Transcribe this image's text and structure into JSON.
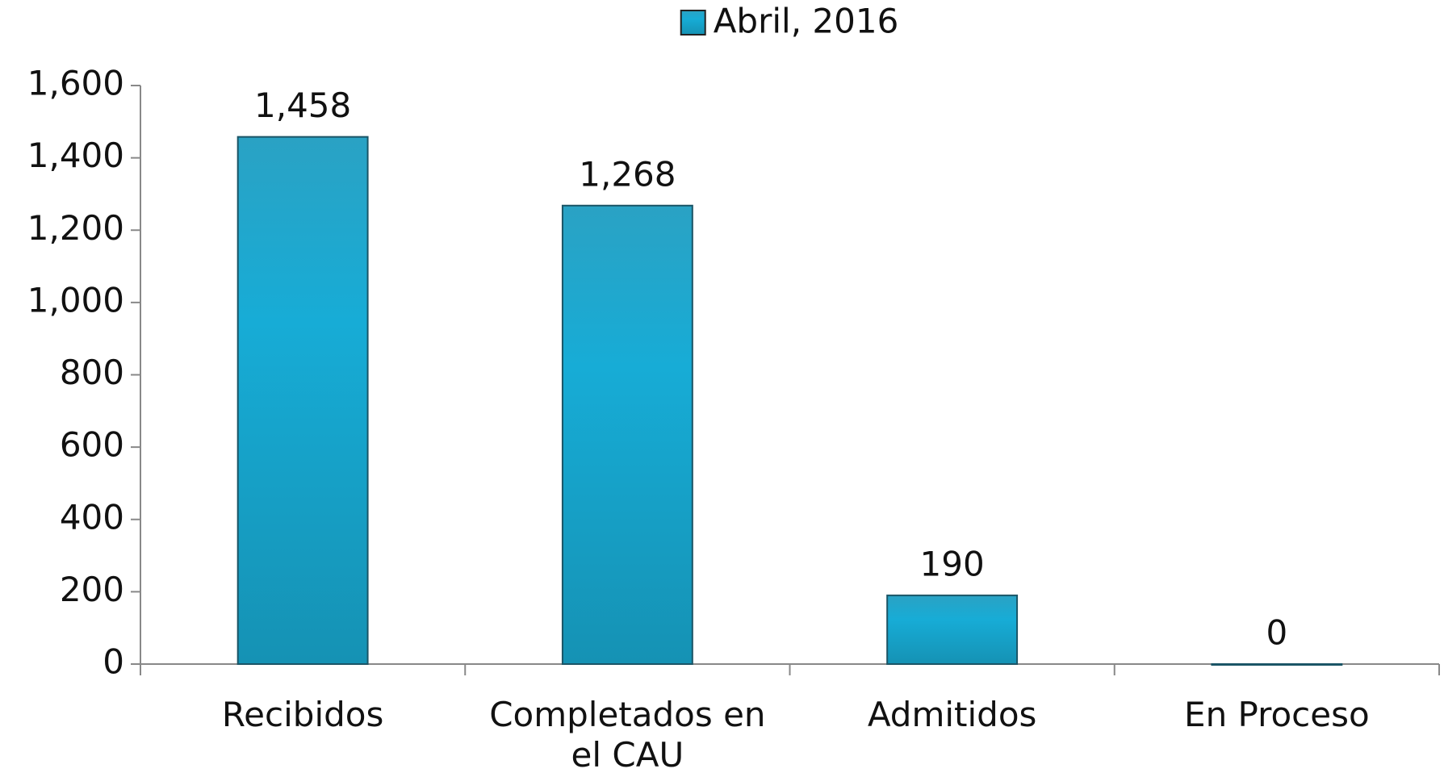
{
  "chart_data": {
    "type": "bar",
    "categories": [
      "Recibidos",
      "Completados en el CAU",
      "Admitidos",
      "En Proceso"
    ],
    "series": [
      {
        "name": "Abril, 2016",
        "color": "#1aa6cc",
        "values": [
          1458,
          1268,
          190,
          0
        ],
        "value_labels": [
          "1,458",
          "1,268",
          "190",
          "0"
        ]
      }
    ],
    "ylim": [
      0,
      1600
    ],
    "yticks": [
      0,
      200,
      400,
      600,
      800,
      {
        "value": 1000,
        "label": "1,000"
      },
      {
        "value": 1200,
        "label": "1,200"
      },
      {
        "value": 1400,
        "label": "1,400"
      },
      {
        "value": 1600,
        "label": "1,600"
      }
    ],
    "legend": "top"
  }
}
